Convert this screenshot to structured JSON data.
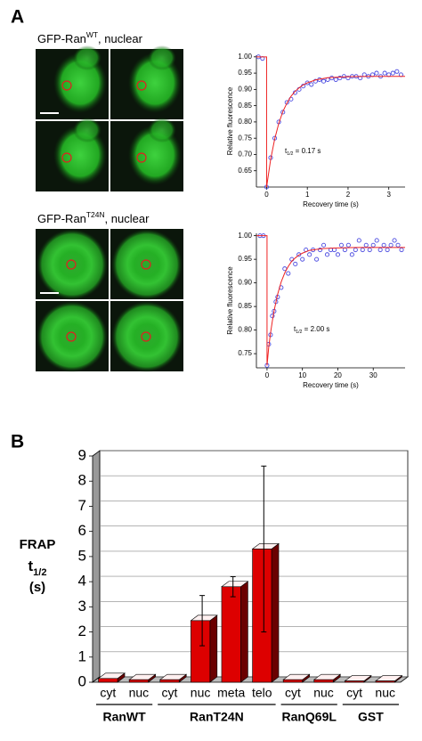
{
  "panel_labels": [
    "A",
    "B"
  ],
  "images": [
    {
      "label_main": "GFP-Ran",
      "label_sup": "WT",
      "label_rest": ", nuclear"
    },
    {
      "label_main": "GFP-Ran",
      "label_sup": "T24N",
      "label_rest": ", nuclear"
    }
  ],
  "chart_data": [
    {
      "type": "scatter",
      "xlabel": "Recovery time (s)",
      "ylabel": "Relative fluorescence",
      "annotation": {
        "main": "t",
        "sub": "1/2",
        "rest": " = 0.17 s"
      },
      "xlim": [
        -0.25,
        3.4
      ],
      "xticks": [
        0,
        1,
        2,
        3
      ],
      "ylim": [
        0.6,
        1.005
      ],
      "yticks": [
        0.65,
        {
          "value": 0.7,
          "label": "0.70"
        },
        0.75,
        {
          "value": 0.8,
          "label": "0.80"
        },
        0.85,
        {
          "value": 0.9,
          "label": "0.90"
        },
        0.95,
        {
          "value": 1,
          "label": "1.00"
        }
      ],
      "series": [
        {
          "type": "scatter",
          "color": "#4a4ae0",
          "x": [
            -0.2,
            -0.1,
            0,
            0.1,
            0.2,
            0.3,
            0.4,
            0.5,
            0.6,
            0.7,
            0.8,
            0.9,
            1.0,
            1.1,
            1.2,
            1.3,
            1.4,
            1.5,
            1.6,
            1.7,
            1.8,
            1.9,
            2.0,
            2.1,
            2.2,
            2.3,
            2.4,
            2.5,
            2.6,
            2.7,
            2.8,
            2.9,
            3.0,
            3.1,
            3.2,
            3.3
          ],
          "values": [
            1.0,
            0.995,
            0.6,
            0.69,
            0.75,
            0.8,
            0.83,
            0.86,
            0.87,
            0.89,
            0.9,
            0.91,
            0.92,
            0.915,
            0.925,
            0.93,
            0.925,
            0.93,
            0.935,
            0.93,
            0.935,
            0.94,
            0.935,
            0.94,
            0.94,
            0.935,
            0.945,
            0.94,
            0.945,
            0.95,
            0.94,
            0.95,
            0.945,
            0.95,
            0.955,
            0.945
          ]
        },
        {
          "type": "line",
          "color": "#ee2222",
          "x": [
            -0.25,
            0,
            0,
            0.1,
            0.2,
            0.3,
            0.4,
            0.5,
            0.6,
            0.7,
            0.8,
            0.9,
            1.0,
            1.2,
            1.5,
            2,
            2.5,
            3,
            3.4
          ],
          "values": [
            1,
            1,
            0.6,
            0.685,
            0.748,
            0.796,
            0.832,
            0.858,
            0.879,
            0.894,
            0.905,
            0.914,
            0.92,
            0.929,
            0.936,
            0.939,
            0.94,
            0.94,
            0.94
          ]
        }
      ]
    },
    {
      "type": "scatter",
      "xlabel": "Recovery time (s)",
      "ylabel": "Relative fluorescence",
      "annotation": {
        "main": "t",
        "sub": "1/2",
        "rest": " = 2.00 s"
      },
      "xlim": [
        -3,
        39
      ],
      "xticks": [
        0,
        10,
        20,
        30
      ],
      "ylim": [
        0.72,
        1.005
      ],
      "yticks": [
        0.75,
        {
          "value": 0.8,
          "label": "0.80"
        },
        0.85,
        {
          "value": 0.9,
          "label": "0.90"
        },
        0.95,
        {
          "value": 1,
          "label": "1.00"
        }
      ],
      "series": [
        {
          "type": "scatter",
          "color": "#4a4ae0",
          "x": [
            -2,
            -1,
            0,
            0.5,
            1,
            1.5,
            2,
            2.5,
            3,
            4,
            5,
            6,
            7,
            8,
            9,
            10,
            11,
            12,
            13,
            14,
            15,
            16,
            17,
            18,
            19,
            20,
            21,
            22,
            23,
            24,
            25,
            26,
            27,
            28,
            29,
            30,
            31,
            32,
            33,
            34,
            35,
            36,
            37,
            38
          ],
          "values": [
            1.0,
            1.0,
            0.725,
            0.77,
            0.79,
            0.83,
            0.84,
            0.86,
            0.87,
            0.89,
            0.93,
            0.92,
            0.95,
            0.94,
            0.96,
            0.95,
            0.97,
            0.96,
            0.97,
            0.95,
            0.97,
            0.98,
            0.96,
            0.97,
            0.97,
            0.96,
            0.98,
            0.97,
            0.98,
            0.96,
            0.97,
            0.99,
            0.97,
            0.98,
            0.97,
            0.98,
            0.99,
            0.97,
            0.98,
            0.97,
            0.98,
            0.99,
            0.98,
            0.97
          ]
        },
        {
          "type": "line",
          "color": "#ee2222",
          "x": [
            -3,
            0,
            0,
            0.5,
            1,
            1.5,
            2,
            3,
            4,
            5,
            6,
            7,
            8,
            9,
            10,
            12,
            14,
            16,
            20,
            25,
            30,
            35,
            39
          ],
          "values": [
            1,
            1,
            0.725,
            0.765,
            0.794,
            0.819,
            0.841,
            0.876,
            0.902,
            0.921,
            0.935,
            0.946,
            0.953,
            0.959,
            0.963,
            0.969,
            0.971,
            0.973,
            0.974,
            0.975,
            0.975,
            0.975,
            0.975
          ]
        }
      ]
    },
    {
      "type": "bar",
      "ylabel": {
        "line1": "FRAP",
        "main": "t",
        "sub": "1/2",
        "line3": "(s)"
      },
      "ylim": [
        0,
        9
      ],
      "yticks": [
        0,
        1,
        2,
        3,
        4,
        5,
        6,
        7,
        8,
        9
      ],
      "grid": true,
      "color": "#dd0000",
      "groups": [
        {
          "name": "RanWT",
          "categories": [
            "cyt",
            "nuc"
          ],
          "values": [
            0.15,
            0.1
          ],
          "errors": [
            null,
            null
          ]
        },
        {
          "name": "RanT24N",
          "categories": [
            "cyt",
            "nuc",
            "meta",
            "telo"
          ],
          "values": [
            0.1,
            2.45,
            3.8,
            5.3
          ],
          "errors": [
            null,
            1.0,
            0.4,
            3.3
          ]
        },
        {
          "name": "RanQ69L",
          "categories": [
            "cyt",
            "nuc"
          ],
          "values": [
            0.1,
            0.1
          ],
          "errors": [
            null,
            null
          ]
        },
        {
          "name": "GST",
          "categories": [
            "cyt",
            "nuc"
          ],
          "values": [
            0.05,
            0.05
          ],
          "errors": [
            null,
            null
          ]
        }
      ]
    }
  ]
}
